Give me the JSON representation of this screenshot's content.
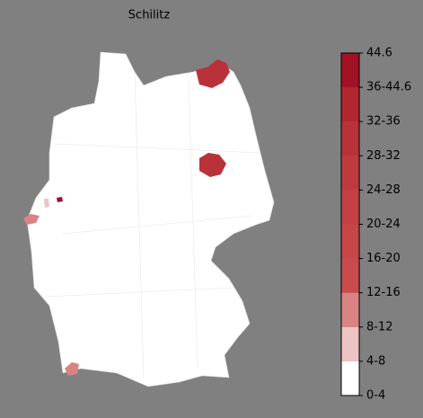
{
  "title": "Schilitz",
  "colorbar": {
    "labels": [
      "0-4",
      "4-8",
      "8-12",
      "12-16",
      "16-20",
      "20-24",
      "24-28",
      "28-32",
      "32-36",
      "36-44.6",
      "44.6"
    ],
    "colors": [
      "#ffffff",
      "#efc3c3",
      "#da8383",
      "#c94b4e",
      "#c64649",
      "#c34144",
      "#bf3a3f",
      "#ba3239",
      "#b22630",
      "#a31124"
    ]
  }
}
